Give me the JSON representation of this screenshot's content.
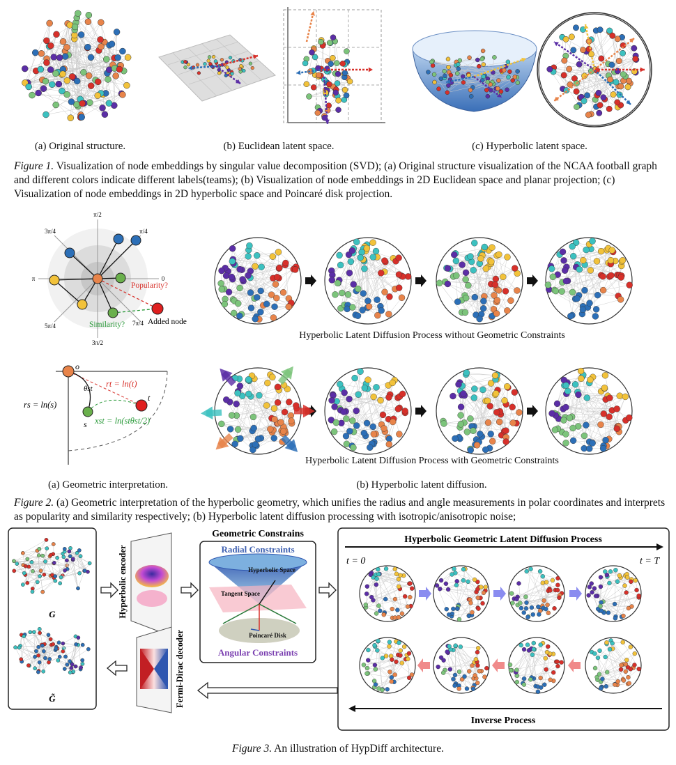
{
  "figure1": {
    "sub_a": "(a)  Original structure.",
    "sub_b": "(b)  Euclidean latent space.",
    "sub_c": "(c)  Hyperbolic latent space.",
    "caption_label": "Figure 1.",
    "caption_text": " Visualization of node embeddings by singular value decomposition (SVD); (a) Original structure visualization of the NCAA football graph and different colors indicate different labels(teams); (b) Visualization of node embeddings in 2D Euclidean space and planar projection; (c) Visualization of node embeddings in 2D hyperbolic space and Poincaré disk projection."
  },
  "figure2": {
    "polar": {
      "top": "π/2",
      "bottom": "3π/2",
      "left": "π",
      "right": "0",
      "tl": "3π/4",
      "tr": "π/4",
      "bl": "5π/4",
      "br": "7π/4",
      "popularity": "Popularity?",
      "similarity": "Similarity?",
      "added": "Added node"
    },
    "geo": {
      "o": "o",
      "t": "t",
      "s": "s",
      "theta": "θst",
      "rt": "rt = ln(t)",
      "rs": "rs = ln(s)",
      "xst": "xst = ln(stθst/2)"
    },
    "row1_label": "Hyperbolic Latent Diffusion Process without Geometric Constraints",
    "row2_label": "Hyperbolic Latent Diffusion Process with Geometric Constraints",
    "sub_a": "(a)  Geometric interpretation.",
    "sub_b": "(b)  Hyperbolic latent diffusion.",
    "caption_label": "Figure 2.",
    "caption_text": " (a) Geometric interpretation of the hyperbolic geometry, which unifies the radius and angle measurements in polar coordinates and interprets as popularity and similarity respectively; (b) Hyperbolic latent diffusion processing with isotropic/anisotropic noise;"
  },
  "figure3": {
    "g": "G",
    "g_tilde": "G̃",
    "encoder": "Hyperbolic encoder",
    "decoder": "Fermi-Dirac decoder",
    "constraints_title": "Geometric Constrains",
    "radial": "Radial Constraints",
    "angular": "Angular Constraints",
    "hyperbolic_space": "Hyperbolic Space",
    "tangent_space": "Tangent Space",
    "poincare_disk": "Poincaré Disk",
    "process_title": "Hyperbolic Geometric Latent Diffusion Process",
    "t0": "t = 0",
    "tT": "t = T",
    "inverse": "Inverse Process",
    "caption_label": "Figure 3.",
    "caption_text": " An illustration of HypDiff  architecture."
  },
  "colors": {
    "red": "#d7302a",
    "orange": "#e8844a",
    "blue": "#2c6fb7",
    "green": "#7cc47b",
    "purple": "#5b2ea6",
    "teal": "#3cc1c0",
    "yellow": "#f2c23a"
  }
}
